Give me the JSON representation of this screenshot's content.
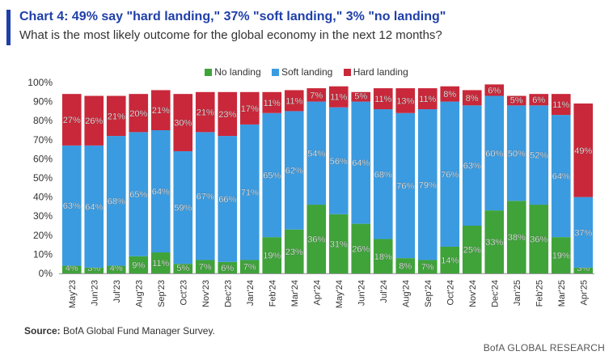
{
  "header": {
    "title": "Chart 4: 49% say \"hard landing,\" 37% \"soft landing,\" 3% \"no landing\"",
    "subtitle": "What is the most likely outcome for the global economy in the next 12 months?"
  },
  "legend": [
    {
      "label": "No landing",
      "color": "#3fa33a"
    },
    {
      "label": "Soft landing",
      "color": "#3b9be0"
    },
    {
      "label": "Hard landing",
      "color": "#c9283a"
    }
  ],
  "footer": {
    "source_label": "Source:",
    "source_text": "BofA Global Fund Manager Survey.",
    "brand": "BofA GLOBAL RESEARCH"
  },
  "chart_data": {
    "type": "bar",
    "stacked": true,
    "title": "Chart 4: 49% say \"hard landing,\" 37% \"soft landing,\" 3% \"no landing\"",
    "categories": [
      "May'23",
      "Jun'23",
      "Jul'23",
      "Aug'23",
      "Sep'23",
      "Oct'23",
      "Nov'23",
      "Dec'23",
      "Jan'24",
      "Feb'24",
      "Mar'24",
      "Apr'24",
      "May'24",
      "Jun'24",
      "Jul'24",
      "Aug'24",
      "Sep'24",
      "Oct'24",
      "Nov'24",
      "Dec'24",
      "Jan'25",
      "Feb'25",
      "Mar'25",
      "Apr'25"
    ],
    "ylim": [
      0,
      100
    ],
    "yticks": [
      "0%",
      "10%",
      "20%",
      "30%",
      "40%",
      "50%",
      "60%",
      "70%",
      "80%",
      "90%",
      "100%"
    ],
    "series": [
      {
        "name": "No landing",
        "color": "#3fa33a",
        "values": [
          4,
          3,
          4,
          9,
          11,
          5,
          7,
          6,
          7,
          19,
          23,
          36,
          31,
          26,
          18,
          8,
          7,
          14,
          25,
          33,
          38,
          36,
          19,
          3
        ]
      },
      {
        "name": "Soft landing",
        "color": "#3b9be0",
        "values": [
          63,
          64,
          68,
          65,
          64,
          59,
          67,
          66,
          71,
          65,
          62,
          54,
          56,
          64,
          68,
          76,
          79,
          76,
          63,
          60,
          50,
          52,
          64,
          37
        ]
      },
      {
        "name": "Hard landing",
        "color": "#c9283a",
        "values": [
          27,
          26,
          21,
          20,
          21,
          30,
          21,
          23,
          17,
          11,
          11,
          7,
          11,
          5,
          11,
          13,
          11,
          8,
          8,
          6,
          5,
          6,
          11,
          49
        ]
      }
    ]
  }
}
